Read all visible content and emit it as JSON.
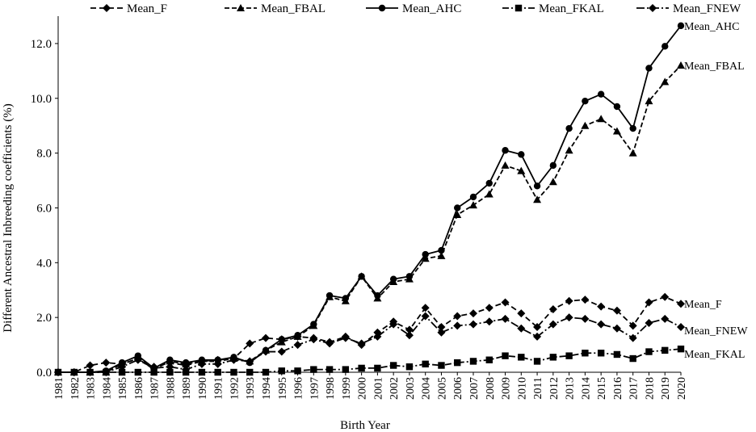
{
  "chart_data": {
    "type": "line",
    "title": "",
    "xlabel": "Birth Year",
    "ylabel": "Different Ancestral Inbreeding coefficients (%)",
    "ylim": [
      0,
      13
    ],
    "yticks": [
      "0.0",
      "2.0",
      "4.0",
      "6.0",
      "8.0",
      "10.0",
      "12.0"
    ],
    "ytick_values": [
      0,
      2,
      4,
      6,
      8,
      10,
      12
    ],
    "x": [
      "1981",
      "1982",
      "1983",
      "1984",
      "1985",
      "1986",
      "1987",
      "1988",
      "1989",
      "1990",
      "1991",
      "1992",
      "1993",
      "1994",
      "1995",
      "1996",
      "1997",
      "1998",
      "1999",
      "2000",
      "2001",
      "2002",
      "2003",
      "2004",
      "2005",
      "2006",
      "2007",
      "2008",
      "2009",
      "2010",
      "2011",
      "2012",
      "2013",
      "2014",
      "2015",
      "2016",
      "2017",
      "2018",
      "2019",
      "2020"
    ],
    "legend_position": "top",
    "series": [
      {
        "name": "Mean_F",
        "end_label": "Mean_F",
        "marker": "diamond",
        "dash": "7,4",
        "color": "#000000",
        "values": [
          0.0,
          0.0,
          0.25,
          0.35,
          0.3,
          0.5,
          0.2,
          0.35,
          0.25,
          0.4,
          0.45,
          0.5,
          1.05,
          1.25,
          1.2,
          1.3,
          1.25,
          1.1,
          1.3,
          1.0,
          1.45,
          1.85,
          1.55,
          2.35,
          1.65,
          2.05,
          2.15,
          2.35,
          2.55,
          2.15,
          1.65,
          2.3,
          2.6,
          2.65,
          2.4,
          2.25,
          1.7,
          2.55,
          2.75,
          2.5
        ]
      },
      {
        "name": "Mean_FBAL",
        "end_label": "Mean_FBAL",
        "marker": "triangle",
        "dash": "6,3",
        "color": "#000000",
        "values": [
          0.0,
          0.0,
          0.0,
          0.0,
          0.3,
          0.5,
          0.1,
          0.4,
          0.3,
          0.4,
          0.4,
          0.5,
          0.4,
          0.8,
          1.1,
          1.3,
          1.7,
          2.75,
          2.6,
          3.5,
          2.7,
          3.3,
          3.4,
          4.15,
          4.25,
          5.75,
          6.1,
          6.5,
          7.55,
          7.35,
          6.3,
          6.95,
          8.1,
          9.0,
          9.25,
          8.8,
          8.0,
          9.9,
          10.6,
          11.2
        ]
      },
      {
        "name": "Mean_AHC",
        "end_label": "Mean_AHC",
        "marker": "circle",
        "dash": "",
        "color": "#000000",
        "values": [
          0.0,
          0.0,
          0.0,
          0.05,
          0.35,
          0.6,
          0.15,
          0.45,
          0.35,
          0.45,
          0.45,
          0.55,
          0.35,
          0.8,
          1.2,
          1.35,
          1.75,
          2.8,
          2.7,
          3.5,
          2.8,
          3.4,
          3.5,
          4.3,
          4.45,
          6.0,
          6.4,
          6.9,
          8.1,
          7.95,
          6.8,
          7.55,
          8.9,
          9.9,
          10.15,
          9.7,
          8.9,
          11.1,
          11.9,
          12.65
        ]
      },
      {
        "name": "Mean_FKAL",
        "end_label": "Mean_FKAL",
        "marker": "square",
        "dash": "8,3,2,3",
        "color": "#000000",
        "values": [
          0.0,
          0.0,
          0.0,
          0.0,
          0.0,
          0.0,
          0.0,
          0.0,
          0.0,
          0.0,
          0.0,
          0.0,
          0.0,
          0.0,
          0.05,
          0.05,
          0.1,
          0.1,
          0.1,
          0.15,
          0.15,
          0.25,
          0.2,
          0.3,
          0.25,
          0.35,
          0.4,
          0.45,
          0.6,
          0.55,
          0.4,
          0.55,
          0.6,
          0.7,
          0.7,
          0.65,
          0.5,
          0.75,
          0.8,
          0.85
        ]
      },
      {
        "name": "Mean_FNEW",
        "end_label": "Mean_FNEW",
        "marker": "diamond",
        "dash": "10,3,2,3",
        "color": "#000000",
        "values": [
          0.0,
          0.0,
          0.0,
          0.0,
          0.2,
          0.45,
          0.15,
          0.2,
          0.1,
          0.3,
          0.3,
          0.45,
          0.4,
          0.75,
          0.75,
          1.0,
          1.2,
          1.05,
          1.25,
          1.05,
          1.3,
          1.75,
          1.35,
          2.05,
          1.45,
          1.7,
          1.75,
          1.85,
          1.95,
          1.6,
          1.3,
          1.75,
          2.0,
          1.95,
          1.75,
          1.6,
          1.25,
          1.8,
          1.95,
          1.65
        ]
      }
    ]
  }
}
